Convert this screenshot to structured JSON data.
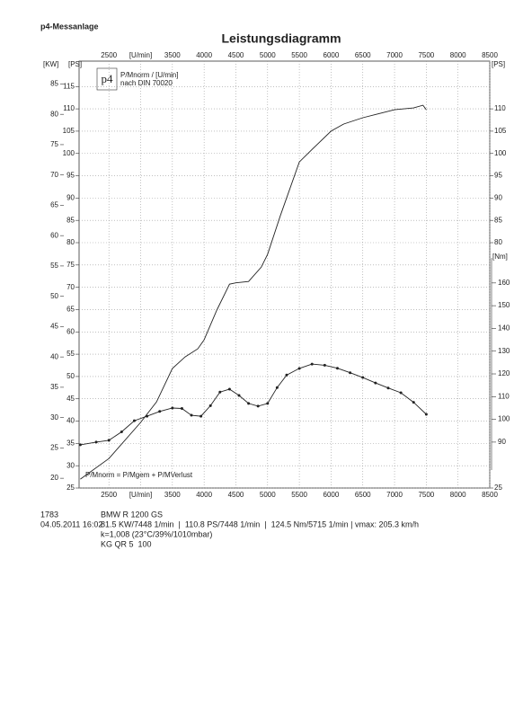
{
  "header": {
    "company": "p4-Messanlage"
  },
  "chart_data": {
    "type": "line",
    "title": "Leistungsdiagramm",
    "legend": {
      "logo": "p4",
      "line1": "P/Mnorm / [U/min]",
      "line2": "nach DIN 70020"
    },
    "formula": "P/Mnorm = P/Mgem + P/MVerlust",
    "kw_label": "[KW]",
    "ps_label": "[PS]",
    "nm_label": "[Nm]",
    "xlim": [
      2030,
      8500
    ],
    "xticks": [
      2500,
      {
        "value": 3000,
        "label": "[U/min]"
      },
      3500,
      4000,
      4500,
      5000,
      5500,
      6000,
      6500,
      7000,
      7500,
      8000,
      8500
    ],
    "ylim": [
      25,
      120.7
    ],
    "yticks": [
      25,
      30,
      35,
      40,
      45,
      50,
      55,
      60,
      65,
      70,
      75,
      80,
      85,
      90,
      95,
      100,
      105,
      110,
      115
    ],
    "kw_lim": [
      18.39,
      88.77
    ],
    "kw_ticks": [
      20,
      25,
      30,
      35,
      40,
      45,
      50,
      55,
      60,
      65,
      70,
      75,
      80,
      85
    ],
    "ps_right_ticks": [
      25,
      80,
      85,
      90,
      95,
      100,
      105,
      110
    ],
    "y2lim": [
      69.8,
      171
    ],
    "y2ticks": [
      90,
      100,
      110,
      120,
      130,
      140,
      150,
      160
    ],
    "grid": true,
    "series": [
      {
        "name": "PS",
        "color": "#222222",
        "axis": "y",
        "markers": false,
        "x": [
          2050,
          2500,
          3000,
          3250,
          3500,
          3700,
          3900,
          4000,
          4200,
          4400,
          4500,
          4700,
          4900,
          5000,
          5200,
          5500,
          5700,
          6000,
          6200,
          6500,
          7000,
          7300,
          7448,
          7500
        ],
        "values": [
          27,
          31.6,
          39.7,
          44.3,
          51.8,
          54.4,
          56.2,
          58.2,
          64.9,
          70.7,
          71,
          71.3,
          74.5,
          77.4,
          86,
          98.1,
          100.9,
          105,
          106.6,
          108,
          109.8,
          110.2,
          110.8,
          109.8
        ]
      },
      {
        "name": "Nm",
        "color": "#222222",
        "axis": "y2",
        "markers": true,
        "x": [
          2050,
          2300,
          2500,
          2700,
          2900,
          3100,
          3300,
          3500,
          3650,
          3800,
          3950,
          4100,
          4250,
          4400,
          4550,
          4700,
          4850,
          5000,
          5150,
          5300,
          5500,
          5700,
          5900,
          6100,
          6300,
          6500,
          6700,
          6900,
          7100,
          7300,
          7500
        ],
        "values": [
          88.8,
          90,
          90.8,
          94.5,
          99.4,
          101.4,
          103.5,
          105,
          104.8,
          101.8,
          101.4,
          106,
          112,
          113.3,
          110.5,
          107,
          105.8,
          107,
          114,
          119.5,
          122.4,
          124.3,
          123.8,
          122.5,
          120.5,
          118.4,
          116,
          113.8,
          111.7,
          107.5,
          102.2
        ]
      }
    ]
  },
  "footer": {
    "id": "1783",
    "model": "BMW R 1200 GS",
    "date": "04.05.2011  16:02",
    "stats": "81.5 KW/7448 1/min  |  110.8 PS/7448 1/min  |  124.5 Nm/5715 1/min | vmax: 205.3 km/h",
    "conditions": "k=1,008 (23°C/39%/1010mbar)",
    "extra": "KG QR 5  100"
  }
}
